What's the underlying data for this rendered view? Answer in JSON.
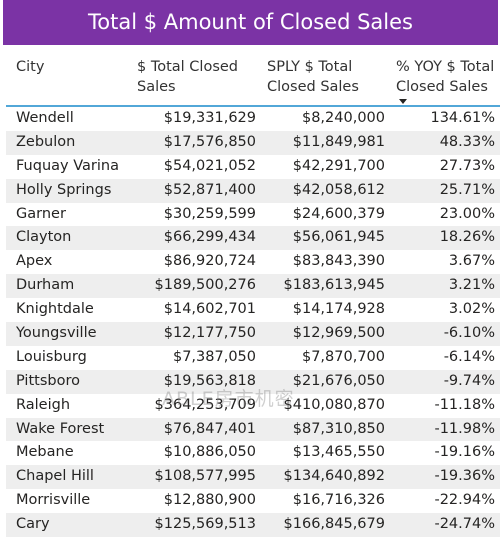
{
  "title": "Total $ Amount of Closed Sales",
  "headers": {
    "city": "City",
    "total_line1": "$ Total Closed",
    "total_line2": "Sales",
    "sply_line1": "SPLY $ Total",
    "sply_line2": "Closed Sales",
    "yoy_line1": "% YOY $ Total",
    "yoy_line2": "Closed Sales"
  },
  "sort": {
    "column": "% YOY $ Total Closed Sales",
    "direction": "descending"
  },
  "rows": [
    {
      "city": "Wendell",
      "total": "$19,331,629",
      "sply": "$8,240,000",
      "yoy": "134.61%"
    },
    {
      "city": "Zebulon",
      "total": "$17,576,850",
      "sply": "$11,849,981",
      "yoy": "48.33%"
    },
    {
      "city": "Fuquay Varina",
      "total": "$54,021,052",
      "sply": "$42,291,700",
      "yoy": "27.73%"
    },
    {
      "city": "Holly Springs",
      "total": "$52,871,400",
      "sply": "$42,058,612",
      "yoy": "25.71%"
    },
    {
      "city": "Garner",
      "total": "$30,259,599",
      "sply": "$24,600,379",
      "yoy": "23.00%"
    },
    {
      "city": "Clayton",
      "total": "$66,299,434",
      "sply": "$56,061,945",
      "yoy": "18.26%"
    },
    {
      "city": "Apex",
      "total": "$86,920,724",
      "sply": "$83,843,390",
      "yoy": "3.67%"
    },
    {
      "city": "Durham",
      "total": "$189,500,276",
      "sply": "$183,613,945",
      "yoy": "3.21%"
    },
    {
      "city": "Knightdale",
      "total": "$14,602,701",
      "sply": "$14,174,928",
      "yoy": "3.02%"
    },
    {
      "city": "Youngsville",
      "total": "$12,177,750",
      "sply": "$12,969,500",
      "yoy": "-6.10%"
    },
    {
      "city": "Louisburg",
      "total": "$7,387,050",
      "sply": "$7,870,700",
      "yoy": "-6.14%"
    },
    {
      "city": "Pittsboro",
      "total": "$19,563,818",
      "sply": "$21,676,050",
      "yoy": "-9.74%"
    },
    {
      "city": "Raleigh",
      "total": "$364,253,709",
      "sply": "$410,080,870",
      "yoy": "-11.18%"
    },
    {
      "city": "Wake Forest",
      "total": "$76,847,401",
      "sply": "$87,310,850",
      "yoy": "-11.98%"
    },
    {
      "city": "Mebane",
      "total": "$10,886,050",
      "sply": "$13,465,550",
      "yoy": "-19.16%"
    },
    {
      "city": "Chapel Hill",
      "total": "$108,577,995",
      "sply": "$134,640,892",
      "yoy": "-19.36%"
    },
    {
      "city": "Morrisville",
      "total": "$12,880,900",
      "sply": "$16,716,326",
      "yoy": "-22.94%"
    },
    {
      "city": "Cary",
      "total": "$125,569,513",
      "sply": "$166,845,679",
      "yoy": "-24.74%"
    }
  ],
  "watermark": "ABLE房市机密"
}
